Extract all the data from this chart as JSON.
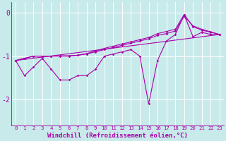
{
  "xlabel": "Windchill (Refroidissement éolien,°C)",
  "bg_color": "#c8eaea",
  "grid_color": "#ffffff",
  "line_color": "#aa00aa",
  "xlim": [
    -0.5,
    23.5
  ],
  "ylim": [
    -2.6,
    0.25
  ],
  "yticks": [
    0,
    -1,
    -2
  ],
  "xticks": [
    0,
    1,
    2,
    3,
    4,
    5,
    6,
    7,
    8,
    9,
    10,
    11,
    12,
    13,
    14,
    15,
    16,
    17,
    18,
    19,
    20,
    21,
    22,
    23
  ],
  "series1_x": [
    0,
    1,
    2,
    3,
    4,
    5,
    6,
    7,
    8,
    9,
    10,
    11,
    12,
    13,
    14,
    15,
    16,
    17,
    18,
    19,
    20,
    21,
    22,
    23
  ],
  "series1_y": [
    -1.1,
    -1.45,
    -1.25,
    -1.05,
    -1.3,
    -1.55,
    -1.55,
    -1.45,
    -1.45,
    -1.3,
    -1.0,
    -0.95,
    -0.9,
    -0.85,
    -1.0,
    -2.1,
    -1.1,
    -0.65,
    -0.5,
    -0.05,
    -0.55,
    -0.45,
    -0.5,
    -0.5
  ],
  "series2_x": [
    0,
    1,
    2,
    3,
    4,
    5,
    6,
    7,
    8,
    9,
    10,
    11,
    12,
    13,
    14,
    15,
    16,
    17,
    18,
    19,
    20,
    21,
    22,
    23
  ],
  "series2_y": [
    -1.1,
    -1.05,
    -1.0,
    -1.0,
    -1.0,
    -1.0,
    -1.0,
    -0.98,
    -0.95,
    -0.9,
    -0.85,
    -0.8,
    -0.75,
    -0.7,
    -0.65,
    -0.6,
    -0.52,
    -0.48,
    -0.42,
    -0.08,
    -0.3,
    -0.38,
    -0.44,
    -0.5
  ],
  "series3_x": [
    0,
    1,
    2,
    3,
    4,
    5,
    6,
    7,
    8,
    9,
    10,
    11,
    12,
    13,
    14,
    15,
    16,
    17,
    18,
    19,
    20,
    21,
    22,
    23
  ],
  "series3_y": [
    -1.1,
    -1.05,
    -1.0,
    -1.0,
    -1.0,
    -0.99,
    -0.99,
    -0.98,
    -0.94,
    -0.88,
    -0.82,
    -0.77,
    -0.72,
    -0.67,
    -0.62,
    -0.57,
    -0.48,
    -0.43,
    -0.38,
    -0.04,
    -0.32,
    -0.4,
    -0.45,
    -0.5
  ],
  "series4_x": [
    0,
    23
  ],
  "series4_y": [
    -1.1,
    -0.5
  ],
  "fontsize_xlabel": 6.5,
  "fontsize_ytick": 7,
  "fontsize_xtick": 5.2
}
